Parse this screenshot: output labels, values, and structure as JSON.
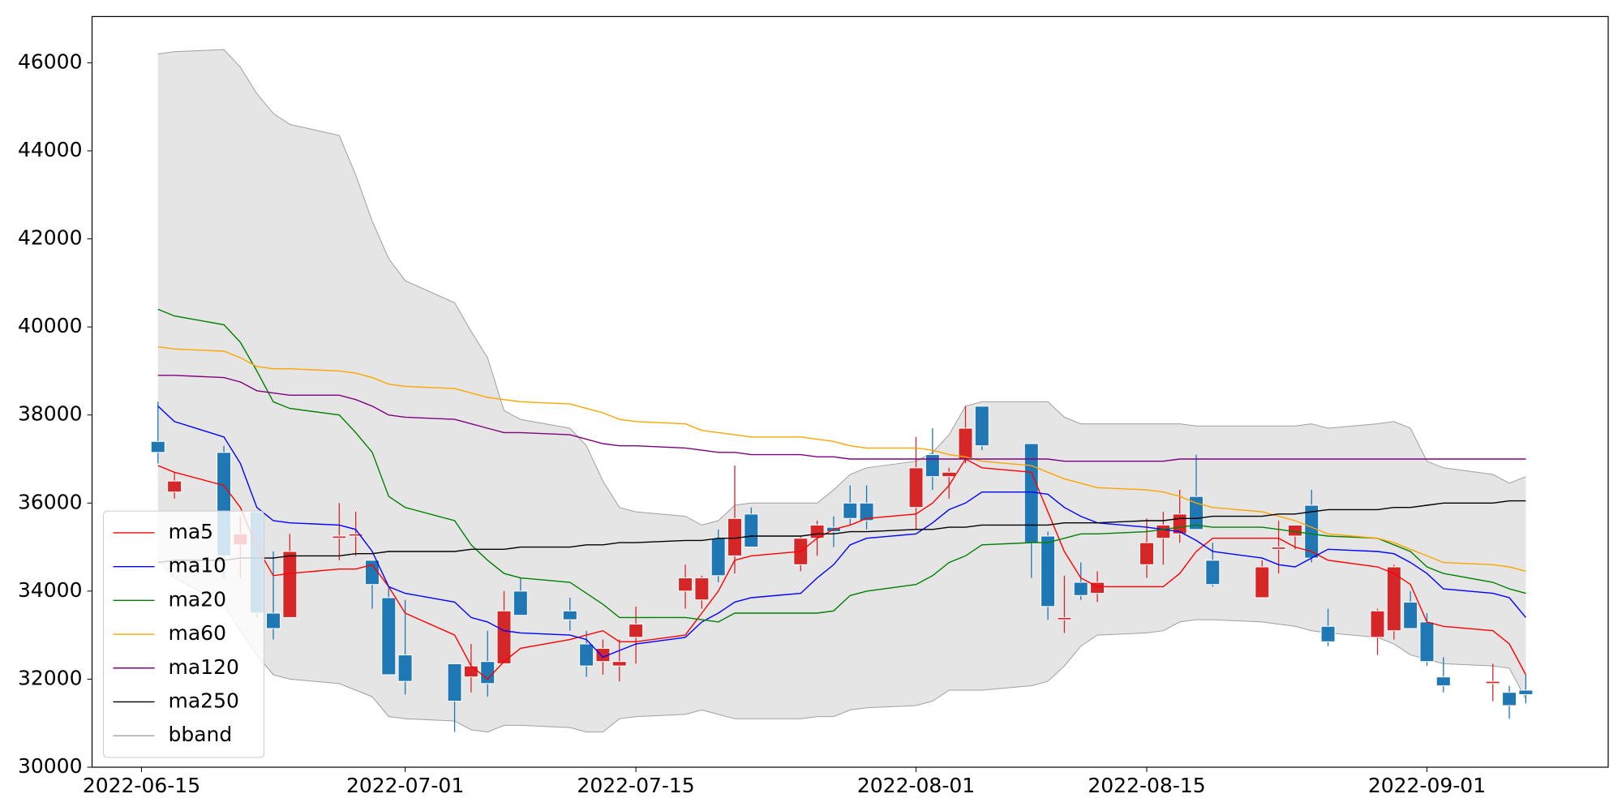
{
  "chart_data": {
    "type": "candlestick",
    "x": [
      "2022-06-16",
      "2022-06-17",
      "2022-06-20",
      "2022-06-21",
      "2022-06-22",
      "2022-06-23",
      "2022-06-24",
      "2022-06-27",
      "2022-06-28",
      "2022-06-29",
      "2022-06-30",
      "2022-07-01",
      "2022-07-04",
      "2022-07-05",
      "2022-07-06",
      "2022-07-07",
      "2022-07-08",
      "2022-07-11",
      "2022-07-12",
      "2022-07-13",
      "2022-07-14",
      "2022-07-15",
      "2022-07-18",
      "2022-07-19",
      "2022-07-20",
      "2022-07-21",
      "2022-07-22",
      "2022-07-25",
      "2022-07-26",
      "2022-07-27",
      "2022-07-28",
      "2022-07-29",
      "2022-08-01",
      "2022-08-02",
      "2022-08-03",
      "2022-08-04",
      "2022-08-05",
      "2022-08-08",
      "2022-08-09",
      "2022-08-10",
      "2022-08-11",
      "2022-08-12",
      "2022-08-15",
      "2022-08-16",
      "2022-08-17",
      "2022-08-18",
      "2022-08-19",
      "2022-08-22",
      "2022-08-23",
      "2022-08-24",
      "2022-08-25",
      "2022-08-26",
      "2022-08-29",
      "2022-08-30",
      "2022-08-31",
      "2022-09-01",
      "2022-09-02",
      "2022-09-05",
      "2022-09-06",
      "2022-09-07"
    ],
    "open": [
      37400,
      36250,
      37150,
      35050,
      35800,
      33500,
      33400,
      35200,
      35250,
      34700,
      33850,
      32550,
      32350,
      32050,
      32400,
      32350,
      34000,
      33550,
      32800,
      32400,
      32300,
      32950,
      34000,
      33800,
      35200,
      34800,
      35750,
      34600,
      35200,
      35450,
      36000,
      36000,
      35900,
      37100,
      36600,
      37000,
      38200,
      37350,
      35250,
      33350,
      34200,
      33950,
      34600,
      35200,
      35300,
      36150,
      34700,
      33850,
      34950,
      35250,
      35950,
      33200,
      32950,
      33100,
      33750,
      33300,
      32050,
      31900,
      31700,
      31750
    ],
    "high": [
      38300,
      36700,
      37300,
      35700,
      35800,
      34900,
      35300,
      36000,
      35800,
      34700,
      34100,
      33800,
      32350,
      32800,
      33100,
      34000,
      34300,
      33850,
      33100,
      32900,
      32900,
      33650,
      34600,
      34350,
      35400,
      36850,
      35900,
      35250,
      35600,
      35700,
      36400,
      36400,
      37500,
      37700,
      36800,
      38200,
      38200,
      37350,
      35350,
      34350,
      34650,
      34450,
      35650,
      35800,
      36300,
      37100,
      35100,
      34700,
      35600,
      35500,
      36300,
      33600,
      33600,
      34600,
      34000,
      33500,
      32500,
      32350,
      31850,
      32100
    ],
    "low": [
      36900,
      36100,
      34300,
      34300,
      33400,
      32900,
      33400,
      34700,
      34800,
      33600,
      32100,
      31650,
      30800,
      31700,
      31600,
      32350,
      33450,
      33100,
      32050,
      32100,
      31950,
      32350,
      33600,
      33600,
      34200,
      34400,
      35000,
      34450,
      34800,
      35000,
      35500,
      35400,
      35400,
      36300,
      36100,
      36900,
      37200,
      34300,
      33350,
      33050,
      33800,
      33750,
      34300,
      34600,
      35100,
      35400,
      34100,
      33850,
      34400,
      34950,
      34650,
      32750,
      32550,
      32900,
      33150,
      32300,
      31700,
      31500,
      31100,
      31450
    ],
    "close": [
      37150,
      36500,
      34800,
      35300,
      33500,
      33150,
      34900,
      35250,
      35300,
      34150,
      32100,
      31950,
      31500,
      32300,
      31900,
      33550,
      33450,
      33350,
      32300,
      32700,
      32400,
      33250,
      34300,
      34300,
      34350,
      35650,
      35000,
      35200,
      35500,
      35350,
      35650,
      35600,
      36800,
      36600,
      36700,
      37700,
      37300,
      35100,
      33650,
      33400,
      33900,
      34200,
      35100,
      35500,
      35750,
      35400,
      34150,
      34550,
      35000,
      35500,
      34750,
      32850,
      33550,
      34550,
      33150,
      32400,
      31850,
      31950,
      31400,
      31650
    ],
    "up_color": "#d62728",
    "down_color": "#1f77b4",
    "series": [
      {
        "name": "ma5",
        "color": "#ff0000",
        "values": [
          36850,
          36700,
          36400,
          35900,
          35000,
          34350,
          34400,
          34500,
          34500,
          34600,
          34100,
          33500,
          33000,
          32300,
          32000,
          32400,
          32700,
          32900,
          33000,
          33100,
          32850,
          32850,
          33000,
          33500,
          34000,
          34700,
          34800,
          34900,
          35200,
          35400,
          35500,
          35650,
          35750,
          36000,
          36400,
          37000,
          36800,
          36700,
          35800,
          34900,
          34300,
          34100,
          34100,
          34100,
          34400,
          34900,
          35200,
          35200,
          35200,
          35000,
          34900,
          34700,
          34550,
          34400,
          34150,
          33300,
          33200,
          33100,
          32800,
          32100
        ]
      },
      {
        "name": "ma10",
        "color": "#0000ff",
        "values": [
          38200,
          37850,
          37500,
          36900,
          35900,
          35600,
          35550,
          35500,
          35400,
          34900,
          34100,
          33950,
          33750,
          33400,
          33300,
          33100,
          33050,
          33000,
          32900,
          32500,
          32650,
          32800,
          32950,
          33300,
          33500,
          33750,
          33850,
          33950,
          34300,
          34600,
          35050,
          35200,
          35300,
          35550,
          35850,
          36000,
          36250,
          36250,
          36200,
          35900,
          35700,
          35550,
          35450,
          35400,
          35350,
          35150,
          34900,
          34750,
          34600,
          34550,
          34750,
          34950,
          34900,
          34850,
          34650,
          34400,
          34050,
          33950,
          33850,
          33400
        ]
      },
      {
        "name": "ma20",
        "color": "#008000",
        "values": [
          40400,
          40250,
          40050,
          39650,
          39000,
          38300,
          38150,
          38000,
          37600,
          37150,
          36150,
          35900,
          35600,
          35050,
          34700,
          34400,
          34300,
          34200,
          33950,
          33700,
          33400,
          33400,
          33400,
          33350,
          33300,
          33500,
          33500,
          33500,
          33500,
          33550,
          33900,
          34000,
          34150,
          34350,
          34650,
          34800,
          35050,
          35100,
          35100,
          35200,
          35300,
          35300,
          35350,
          35400,
          35450,
          35500,
          35450,
          35450,
          35400,
          35350,
          35300,
          35250,
          35200,
          35050,
          34900,
          34550,
          34400,
          34200,
          34050,
          33950
        ]
      },
      {
        "name": "ma60",
        "color": "#ffa500",
        "values": [
          39550,
          39500,
          39450,
          39300,
          39100,
          39050,
          39050,
          39000,
          38950,
          38850,
          38700,
          38650,
          38600,
          38500,
          38400,
          38350,
          38300,
          38250,
          38150,
          38050,
          37900,
          37850,
          37800,
          37650,
          37600,
          37550,
          37500,
          37500,
          37450,
          37400,
          37300,
          37250,
          37250,
          37200,
          37100,
          37050,
          36950,
          36850,
          36700,
          36550,
          36450,
          36350,
          36300,
          36250,
          36150,
          36000,
          35900,
          35800,
          35700,
          35600,
          35450,
          35300,
          35200,
          35100,
          34950,
          34800,
          34650,
          34600,
          34550,
          34450
        ]
      },
      {
        "name": "ma120",
        "color": "#800080",
        "values": [
          38900,
          38900,
          38850,
          38750,
          38550,
          38500,
          38450,
          38450,
          38350,
          38200,
          38000,
          37950,
          37900,
          37800,
          37700,
          37600,
          37600,
          37550,
          37450,
          37350,
          37300,
          37300,
          37250,
          37200,
          37150,
          37150,
          37100,
          37100,
          37050,
          37050,
          37000,
          37000,
          37000,
          37000,
          37000,
          37000,
          37000,
          37000,
          37000,
          36950,
          36950,
          36950,
          36950,
          36950,
          37000,
          37000,
          37000,
          37000,
          37000,
          37000,
          37000,
          37000,
          37000,
          37000,
          37000,
          37000,
          37000,
          37000,
          37000,
          37000
        ]
      },
      {
        "name": "ma250",
        "color": "#000000",
        "values": [
          34650,
          34700,
          34700,
          34750,
          34750,
          34750,
          34800,
          34800,
          34850,
          34850,
          34900,
          34900,
          34900,
          34950,
          34950,
          34950,
          35000,
          35000,
          35050,
          35050,
          35100,
          35100,
          35150,
          35150,
          35200,
          35200,
          35250,
          35250,
          35300,
          35300,
          35350,
          35350,
          35400,
          35400,
          35450,
          35450,
          35500,
          35500,
          35500,
          35550,
          35550,
          35550,
          35600,
          35600,
          35650,
          35650,
          35700,
          35700,
          35750,
          35750,
          35800,
          35850,
          35850,
          35900,
          35900,
          35950,
          36000,
          36000,
          36050,
          36050
        ]
      }
    ],
    "bband": {
      "name": "bband",
      "color": "#a0a0a0",
      "fill": "#e5e5e5",
      "upper": [
        46200,
        46250,
        46300,
        45900,
        45300,
        44850,
        44600,
        44350,
        43450,
        42400,
        41550,
        41050,
        40550,
        39900,
        39300,
        38100,
        37900,
        37700,
        37300,
        36500,
        35900,
        35800,
        35700,
        35500,
        35600,
        35950,
        36000,
        36000,
        36000,
        36300,
        36650,
        36800,
        36950,
        37150,
        37550,
        38200,
        38300,
        38300,
        38300,
        37950,
        37800,
        37800,
        37800,
        37800,
        37800,
        37750,
        37750,
        37750,
        37750,
        37750,
        37800,
        37700,
        37800,
        37850,
        37700,
        36950,
        36800,
        36650,
        36450,
        36600
      ],
      "lower": [
        34700,
        34300,
        33700,
        33100,
        32550,
        32100,
        32000,
        31900,
        31750,
        31600,
        31150,
        31100,
        31050,
        30850,
        30800,
        30950,
        30950,
        30900,
        30800,
        30800,
        31100,
        31150,
        31200,
        31300,
        31200,
        31100,
        31100,
        31100,
        31150,
        31150,
        31300,
        31350,
        31400,
        31500,
        31750,
        31750,
        31750,
        31850,
        31950,
        32300,
        32750,
        33000,
        33050,
        33100,
        33300,
        33350,
        33350,
        33300,
        33250,
        33200,
        33100,
        33050,
        32950,
        32800,
        32550,
        32450,
        32350,
        32300,
        32250,
        31550
      ]
    },
    "xlim": [
      "2022-06-12",
      "2022-09-12"
    ],
    "xticks": [
      "2022-06-15",
      "2022-07-01",
      "2022-07-15",
      "2022-08-01",
      "2022-08-15",
      "2022-09-01"
    ],
    "ylim": [
      30000,
      47050
    ],
    "yticks": [
      30000,
      32000,
      34000,
      36000,
      38000,
      40000,
      42000,
      44000,
      46000
    ],
    "legend": "lower left"
  }
}
